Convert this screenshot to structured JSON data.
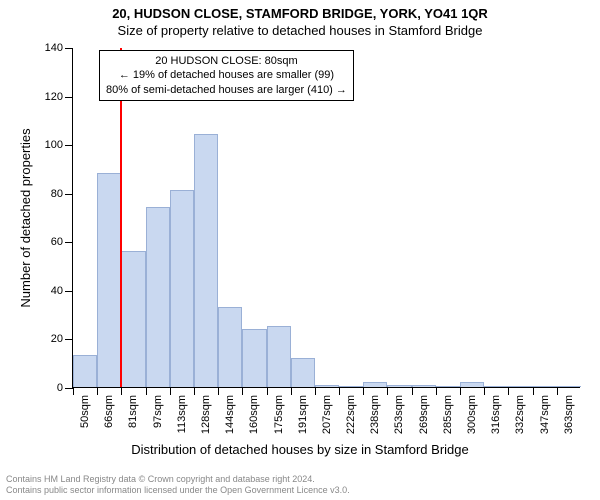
{
  "title_main": "20, HUDSON CLOSE, STAMFORD BRIDGE, YORK, YO41 1QR",
  "title_sub": "Size of property relative to detached houses in Stamford Bridge",
  "y_axis_title": "Number of detached properties",
  "x_axis_title": "Distribution of detached houses by size in Stamford Bridge",
  "chart": {
    "type": "histogram",
    "ylim": [
      0,
      140
    ],
    "ytick_step": 20,
    "y_ticks": [
      0,
      20,
      40,
      60,
      80,
      100,
      120,
      140
    ],
    "x_labels": [
      "50sqm",
      "66sqm",
      "81sqm",
      "97sqm",
      "113sqm",
      "128sqm",
      "144sqm",
      "160sqm",
      "175sqm",
      "191sqm",
      "207sqm",
      "222sqm",
      "238sqm",
      "253sqm",
      "269sqm",
      "285sqm",
      "300sqm",
      "316sqm",
      "332sqm",
      "347sqm",
      "363sqm"
    ],
    "values": [
      13,
      88,
      56,
      74,
      81,
      104,
      33,
      24,
      25,
      12,
      1,
      0,
      2,
      1,
      1,
      0,
      2,
      0,
      0,
      0,
      0
    ],
    "bar_fill": "#c9d8f0",
    "bar_stroke": "#9ab0d6",
    "ref_line_bin_index": 2,
    "ref_line_color": "#ff0000",
    "background": "#ffffff",
    "font_size_title": 13,
    "font_size_label": 11
  },
  "annotation": {
    "line1": "20 HUDSON CLOSE: 80sqm",
    "line2": "← 19% of detached houses are smaller (99)",
    "line3": "80% of semi-detached houses are larger (410) →"
  },
  "attribution": {
    "line1": "Contains HM Land Registry data © Crown copyright and database right 2024.",
    "line2": "Contains public sector information licensed under the Open Government Licence v3.0."
  }
}
